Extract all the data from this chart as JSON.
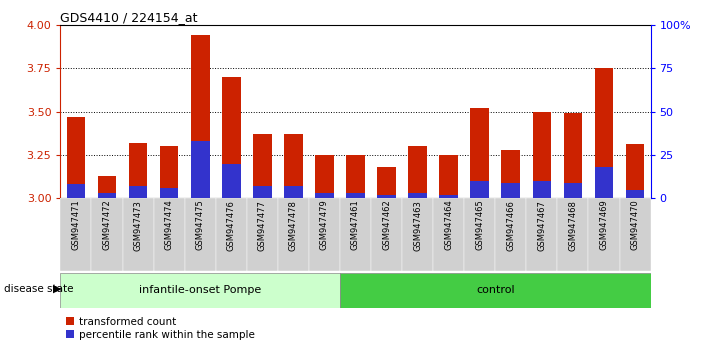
{
  "title": "GDS4410 / 224154_at",
  "samples": [
    "GSM947471",
    "GSM947472",
    "GSM947473",
    "GSM947474",
    "GSM947475",
    "GSM947476",
    "GSM947477",
    "GSM947478",
    "GSM947479",
    "GSM947461",
    "GSM947462",
    "GSM947463",
    "GSM947464",
    "GSM947465",
    "GSM947466",
    "GSM947467",
    "GSM947468",
    "GSM947469",
    "GSM947470"
  ],
  "transformed_count": [
    3.47,
    3.13,
    3.32,
    3.3,
    3.94,
    3.7,
    3.37,
    3.37,
    3.25,
    3.25,
    3.18,
    3.3,
    3.25,
    3.52,
    3.28,
    3.5,
    3.49,
    3.75,
    3.31
  ],
  "percentile_rank": [
    8,
    3,
    7,
    6,
    33,
    20,
    7,
    7,
    3,
    3,
    2,
    3,
    2,
    10,
    9,
    10,
    9,
    18,
    5
  ],
  "bar_base": 3.0,
  "ylim": [
    3.0,
    4.0
  ],
  "yticks_left": [
    3.0,
    3.25,
    3.5,
    3.75,
    4.0
  ],
  "yticks_right": [
    0,
    25,
    50,
    75,
    100
  ],
  "group1_label": "infantile-onset Pompe",
  "group2_label": "control",
  "group1_count": 9,
  "group2_count": 10,
  "bar_color_red": "#cc2200",
  "bar_color_blue": "#3333cc",
  "group1_bg": "#ccffcc",
  "group2_bg": "#44cc44",
  "sample_bg": "#d0d0d0",
  "legend1": "transformed count",
  "legend2": "percentile rank within the sample",
  "disease_state_label": "disease state"
}
